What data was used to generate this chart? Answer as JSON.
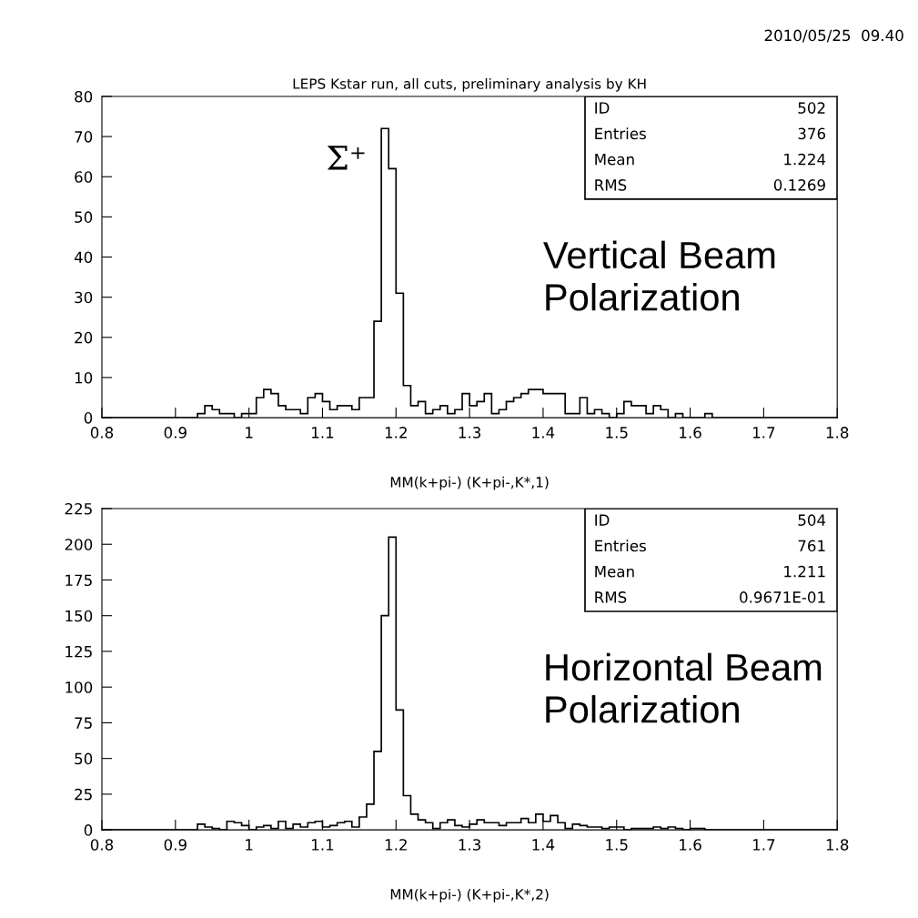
{
  "chart_data": [
    {
      "type": "histogram",
      "title": "LEPS Kstar run, all cuts, preliminary analysis by KH",
      "xlabel": "MM(k+pi-) (K+pi-,K*,1)",
      "bins": [
        0.8,
        0.81,
        0.82,
        0.83,
        0.84,
        0.85,
        0.86,
        0.87,
        0.88,
        0.89,
        0.9,
        0.91,
        0.92,
        0.93,
        0.94,
        0.95,
        0.96,
        0.97,
        0.98,
        0.99,
        1.0,
        1.01,
        1.02,
        1.03,
        1.04,
        1.05,
        1.06,
        1.07,
        1.08,
        1.09,
        1.1,
        1.11,
        1.12,
        1.13,
        1.14,
        1.15,
        1.16,
        1.17,
        1.18,
        1.19,
        1.2,
        1.21,
        1.22,
        1.23,
        1.24,
        1.25,
        1.26,
        1.27,
        1.28,
        1.29,
        1.3,
        1.31,
        1.32,
        1.33,
        1.34,
        1.35,
        1.36,
        1.37,
        1.38,
        1.39,
        1.4,
        1.41,
        1.42,
        1.43,
        1.44,
        1.45,
        1.46,
        1.47,
        1.48,
        1.49,
        1.5,
        1.51,
        1.52,
        1.53,
        1.54,
        1.55,
        1.56,
        1.57,
        1.58,
        1.59,
        1.6,
        1.61,
        1.62,
        1.63,
        1.64,
        1.65,
        1.66,
        1.67,
        1.68,
        1.69,
        1.7,
        1.71,
        1.72,
        1.73,
        1.74,
        1.75,
        1.76,
        1.77,
        1.78,
        1.79,
        1.8
      ],
      "values": [
        0,
        0,
        0,
        0,
        0,
        0,
        0,
        0,
        0,
        0,
        0,
        0,
        0,
        1,
        3,
        2,
        1,
        1,
        0,
        1,
        1,
        5,
        7,
        6,
        3,
        2,
        2,
        1,
        5,
        6,
        4,
        2,
        3,
        3,
        2,
        5,
        5,
        24,
        72,
        62,
        31,
        8,
        3,
        4,
        1,
        2,
        3,
        1,
        2,
        6,
        3,
        4,
        6,
        1,
        2,
        4,
        5,
        6,
        7,
        7,
        6,
        6,
        6,
        1,
        1,
        5,
        1,
        2,
        1,
        0,
        1,
        4,
        3,
        3,
        1,
        3,
        2,
        0,
        1,
        0,
        0,
        0,
        1,
        0,
        0,
        0,
        0,
        0,
        0,
        0,
        0,
        0,
        0,
        0,
        0,
        0,
        0,
        0,
        0,
        0
      ],
      "color": "#000000",
      "xlim": [
        0.8,
        1.8
      ],
      "xticks": [
        0.8,
        0.9,
        1,
        1.1,
        1.2,
        1.3,
        1.4,
        1.5,
        1.6,
        1.7,
        1.8
      ],
      "ylim": [
        0,
        80
      ],
      "yticks": [
        0,
        10,
        20,
        30,
        40,
        50,
        60,
        70,
        80
      ],
      "grid": false,
      "legend": false,
      "annotations": [
        "2010/05/25  09.40",
        "Σ⁺",
        "ID",
        "502",
        "Entries",
        "376",
        "Mean",
        "1.224",
        "RMS",
        "0.1269",
        "Vertical Beam\nPolarization"
      ]
    },
    {
      "type": "histogram",
      "xlabel": "MM(k+pi-) (K+pi-,K*,2)",
      "bins": [
        0.8,
        0.81,
        0.82,
        0.83,
        0.84,
        0.85,
        0.86,
        0.87,
        0.88,
        0.89,
        0.9,
        0.91,
        0.92,
        0.93,
        0.94,
        0.95,
        0.96,
        0.97,
        0.98,
        0.99,
        1.0,
        1.01,
        1.02,
        1.03,
        1.04,
        1.05,
        1.06,
        1.07,
        1.08,
        1.09,
        1.1,
        1.11,
        1.12,
        1.13,
        1.14,
        1.15,
        1.16,
        1.17,
        1.18,
        1.19,
        1.2,
        1.21,
        1.22,
        1.23,
        1.24,
        1.25,
        1.26,
        1.27,
        1.28,
        1.29,
        1.3,
        1.31,
        1.32,
        1.33,
        1.34,
        1.35,
        1.36,
        1.37,
        1.38,
        1.39,
        1.4,
        1.41,
        1.42,
        1.43,
        1.44,
        1.45,
        1.46,
        1.47,
        1.48,
        1.49,
        1.5,
        1.51,
        1.52,
        1.53,
        1.54,
        1.55,
        1.56,
        1.57,
        1.58,
        1.59,
        1.6,
        1.61,
        1.62,
        1.63,
        1.64,
        1.65,
        1.66,
        1.67,
        1.68,
        1.69,
        1.7,
        1.71,
        1.72,
        1.73,
        1.74,
        1.75,
        1.76,
        1.77,
        1.78,
        1.79,
        1.8
      ],
      "values": [
        0,
        0,
        0,
        0,
        0,
        0,
        0,
        0,
        0,
        0,
        0,
        0,
        0,
        4,
        2,
        1,
        0,
        6,
        5,
        3,
        0,
        2,
        3,
        1,
        6,
        1,
        4,
        2,
        5,
        6,
        2,
        3,
        5,
        6,
        2,
        9,
        18,
        55,
        150,
        205,
        84,
        24,
        11,
        7,
        5,
        1,
        5,
        7,
        3,
        2,
        4,
        7,
        5,
        5,
        3,
        5,
        5,
        8,
        5,
        11,
        6,
        10,
        5,
        1,
        4,
        3,
        2,
        2,
        1,
        2,
        2,
        0,
        1,
        1,
        1,
        2,
        1,
        2,
        1,
        0,
        1,
        1,
        0,
        0,
        0,
        0,
        0,
        0,
        0,
        0,
        0,
        0,
        0,
        0,
        0,
        0,
        0,
        0,
        0,
        0
      ],
      "color": "#000000",
      "xlim": [
        0.8,
        1.8
      ],
      "xticks": [
        0.8,
        0.9,
        1,
        1.1,
        1.2,
        1.3,
        1.4,
        1.5,
        1.6,
        1.7,
        1.8
      ],
      "ylim": [
        0,
        225
      ],
      "yticks": [
        0,
        25,
        50,
        75,
        100,
        125,
        150,
        175,
        200,
        225
      ],
      "grid": false,
      "legend": false,
      "annotations": [
        "ID",
        "504",
        "Entries",
        "761",
        "Mean",
        "1.211",
        "RMS",
        "0.9671E-01",
        "Horizontal Beam\nPolarization"
      ]
    }
  ]
}
